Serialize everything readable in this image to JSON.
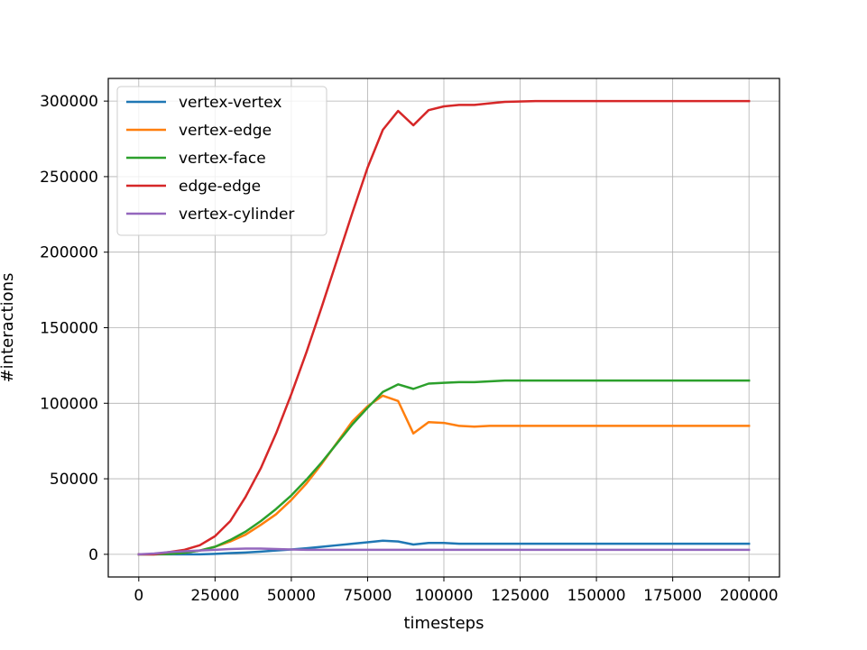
{
  "chart_data": {
    "type": "line",
    "xlabel": "timesteps",
    "ylabel": "#interactions",
    "xlim": [
      -10000,
      210000
    ],
    "ylim": [
      -15000,
      315000
    ],
    "xticks": [
      0,
      25000,
      50000,
      75000,
      100000,
      125000,
      150000,
      175000,
      200000
    ],
    "yticks": [
      0,
      50000,
      100000,
      150000,
      200000,
      250000,
      300000
    ],
    "grid": true,
    "legend_position": "top-left",
    "x": [
      0,
      5000,
      10000,
      15000,
      20000,
      25000,
      30000,
      35000,
      40000,
      45000,
      50000,
      55000,
      60000,
      65000,
      70000,
      75000,
      80000,
      85000,
      90000,
      95000,
      100000,
      105000,
      110000,
      115000,
      120000,
      130000,
      140000,
      150000,
      160000,
      170000,
      180000,
      190000,
      200000
    ],
    "series": [
      {
        "name": "vertex-vertex",
        "color": "#1f77b4",
        "values": [
          0,
          0,
          0,
          0,
          0,
          300,
          800,
          1200,
          1800,
          2500,
          3200,
          4000,
          5000,
          6000,
          7000,
          8000,
          9000,
          8500,
          6500,
          7500,
          7500,
          7000,
          7000,
          7000,
          7000,
          7000,
          7000,
          7000,
          7000,
          7000,
          7000,
          7000,
          7000
        ]
      },
      {
        "name": "vertex-edge",
        "color": "#ff7f0e",
        "values": [
          0,
          0,
          300,
          1000,
          2500,
          5000,
          8500,
          13000,
          19500,
          26500,
          36000,
          47000,
          60000,
          74000,
          88000,
          98000,
          105000,
          101500,
          80000,
          87500,
          87000,
          85000,
          84500,
          85000,
          85000,
          85000,
          85000,
          85000,
          85000,
          85000,
          85000,
          85000,
          85000
        ]
      },
      {
        "name": "vertex-face",
        "color": "#2ca02c",
        "values": [
          0,
          0,
          300,
          1000,
          2500,
          5000,
          9500,
          15000,
          22000,
          30000,
          39000,
          49500,
          61000,
          73500,
          86000,
          97000,
          107500,
          112500,
          109500,
          113000,
          113500,
          114000,
          114000,
          114500,
          115000,
          115000,
          115000,
          115000,
          115000,
          115000,
          115000,
          115000,
          115000
        ]
      },
      {
        "name": "edge-edge",
        "color": "#d62728",
        "values": [
          0,
          0,
          1500,
          3000,
          6000,
          12000,
          22000,
          38000,
          57000,
          80000,
          106000,
          134000,
          164000,
          195000,
          226000,
          256000,
          281000,
          293500,
          284000,
          294000,
          296500,
          297500,
          297500,
          298500,
          299500,
          300000,
          300000,
          300000,
          300000,
          300000,
          300000,
          300000,
          300000
        ]
      },
      {
        "name": "vertex-cylinder",
        "color": "#9467bd",
        "values": [
          0,
          500,
          1500,
          2000,
          2500,
          3000,
          3500,
          3800,
          3800,
          3500,
          3200,
          3000,
          3000,
          3000,
          3000,
          3000,
          3000,
          3000,
          3000,
          3000,
          3000,
          3000,
          3000,
          3000,
          3000,
          3000,
          3000,
          3000,
          3000,
          3000,
          3000,
          3000,
          3000
        ]
      }
    ]
  }
}
